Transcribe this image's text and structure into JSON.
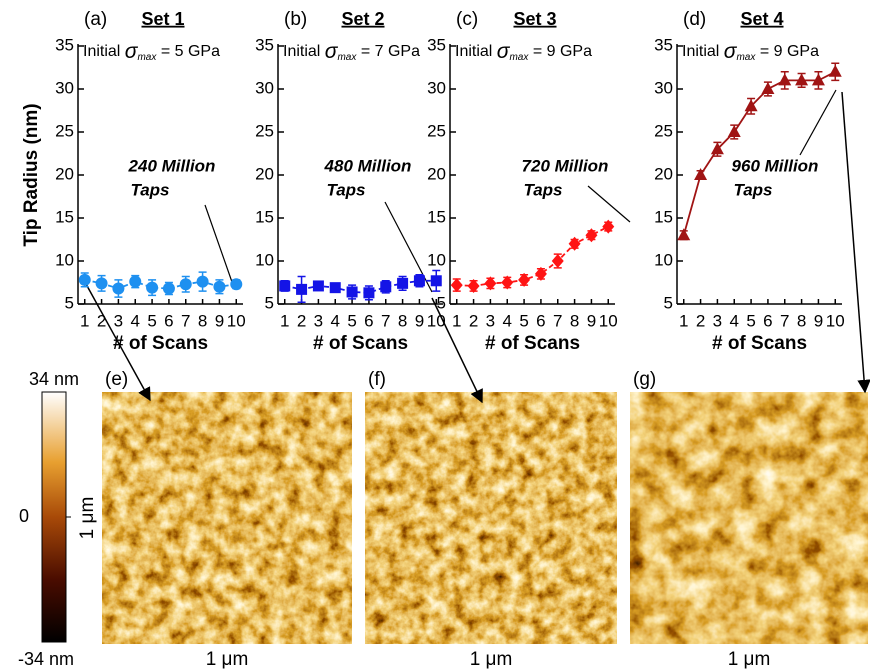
{
  "chart_data": [
    {
      "type": "line",
      "panel": "(a)",
      "title": "Set 1",
      "ylabel": "Tip Radius (nm)",
      "xlabel": "# of Scans",
      "annotation": {
        "prefix": "Initial ",
        "symbol": "σ",
        "sub": "max",
        "suffix": " = 5 GPa"
      },
      "callout": [
        "240 Million",
        "Taps"
      ],
      "x": [
        1,
        2,
        3,
        4,
        5,
        6,
        7,
        8,
        9,
        10
      ],
      "xlim": [
        0.6,
        10.4
      ],
      "xticks": [
        1,
        2,
        3,
        4,
        5,
        6,
        7,
        8,
        9,
        10
      ],
      "ylim": [
        5,
        35
      ],
      "yticks": [
        5,
        10,
        15,
        20,
        25,
        30,
        35
      ],
      "series": [
        {
          "color": "#1e90f0",
          "marker": "circle",
          "dash": true,
          "values": [
            7.8,
            7.4,
            6.8,
            7.6,
            6.9,
            6.8,
            7.3,
            7.6,
            7.0,
            7.3
          ],
          "errors": [
            0.8,
            0.9,
            1.0,
            0.7,
            0.9,
            0.7,
            0.9,
            1.1,
            0.8,
            0.5
          ]
        }
      ]
    },
    {
      "type": "line",
      "panel": "(b)",
      "title": "Set 2",
      "xlabel": "# of Scans",
      "annotation": {
        "prefix": "Initial ",
        "symbol": "σ",
        "sub": "max",
        "suffix": " = 7 GPa"
      },
      "callout": [
        "480 Million",
        "Taps"
      ],
      "x": [
        1,
        2,
        3,
        4,
        5,
        6,
        7,
        8,
        9,
        10
      ],
      "xlim": [
        0.6,
        10.4
      ],
      "xticks": [
        1,
        2,
        3,
        4,
        5,
        6,
        7,
        8,
        9,
        10
      ],
      "ylim": [
        5,
        35
      ],
      "yticks": [
        5,
        10,
        15,
        20,
        25,
        30,
        35
      ],
      "series": [
        {
          "color": "#1414e6",
          "marker": "square",
          "dash": true,
          "values": [
            7.1,
            6.7,
            7.1,
            6.9,
            6.4,
            6.3,
            7.0,
            7.4,
            7.7,
            7.7
          ],
          "errors": [
            0.6,
            1.5,
            0.4,
            0.4,
            0.8,
            0.8,
            0.7,
            0.8,
            0.7,
            1.2
          ]
        }
      ]
    },
    {
      "type": "line",
      "panel": "(c)",
      "title": "Set 3",
      "xlabel": "# of Scans",
      "annotation": {
        "prefix": "Initial ",
        "symbol": "σ",
        "sub": "max",
        "suffix": " = 9 GPa"
      },
      "callout": [
        "720 Million",
        "Taps"
      ],
      "x": [
        1,
        2,
        3,
        4,
        5,
        6,
        7,
        8,
        9,
        10
      ],
      "xlim": [
        0.6,
        10.4
      ],
      "xticks": [
        1,
        2,
        3,
        4,
        5,
        6,
        7,
        8,
        9,
        10
      ],
      "ylim": [
        5,
        35
      ],
      "yticks": [
        5,
        10,
        15,
        20,
        25,
        30,
        35
      ],
      "series": [
        {
          "color": "#ff1414",
          "marker": "diamond",
          "dash": true,
          "values": [
            7.2,
            7.1,
            7.4,
            7.5,
            7.8,
            8.5,
            10.0,
            12.0,
            13.0,
            14.0
          ],
          "errors": [
            0.7,
            0.6,
            0.6,
            0.6,
            0.6,
            0.6,
            0.8,
            0.5,
            0.5,
            0.5
          ]
        }
      ]
    },
    {
      "type": "line",
      "panel": "(d)",
      "title": "Set 4",
      "xlabel": "# of Scans",
      "annotation": {
        "prefix": "Initial ",
        "symbol": "σ",
        "sub": "max",
        "suffix": " = 9 GPa"
      },
      "callout": [
        "960 Million",
        "Taps"
      ],
      "x": [
        1,
        2,
        3,
        4,
        5,
        6,
        7,
        8,
        9,
        10
      ],
      "xlim": [
        0.6,
        10.4
      ],
      "xticks": [
        1,
        2,
        3,
        4,
        5,
        6,
        7,
        8,
        9,
        10
      ],
      "ylim": [
        5,
        35
      ],
      "yticks": [
        5,
        10,
        15,
        20,
        25,
        30,
        35
      ],
      "series": [
        {
          "color": "#a01414",
          "marker": "triangle",
          "dash": false,
          "values": [
            13,
            20,
            23,
            25,
            28,
            30,
            31,
            31,
            31,
            32
          ],
          "errors": [
            0.5,
            0.5,
            0.8,
            0.8,
            0.9,
            0.8,
            1.0,
            0.8,
            1.0,
            1.0
          ]
        }
      ]
    }
  ],
  "images": {
    "panels": [
      {
        "label": "(e)"
      },
      {
        "label": "(f)"
      },
      {
        "label": "(g)"
      }
    ],
    "scale_x": "1 μm",
    "scale_y": "1 μm",
    "colorbar": {
      "max_label": "34 nm",
      "mid_label": "0",
      "min_label": "-34 nm"
    }
  }
}
